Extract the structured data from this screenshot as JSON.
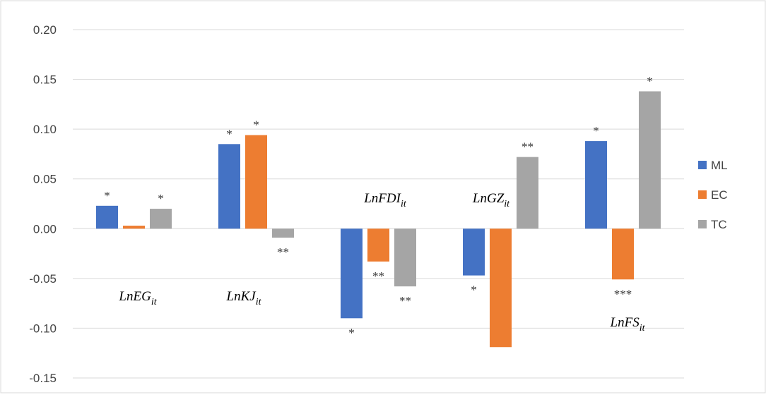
{
  "chart_data": {
    "type": "bar",
    "categories": [
      {
        "base": "LnEG",
        "sub": "it"
      },
      {
        "base": "LnKJ",
        "sub": "it"
      },
      {
        "base": "LnFDI",
        "sub": "it"
      },
      {
        "base": "LnGZ",
        "sub": "it"
      },
      {
        "base": "LnFS",
        "sub": "it"
      }
    ],
    "series": [
      {
        "name": "ML",
        "color": "#4472C4",
        "values": [
          0.023,
          0.085,
          -0.09,
          -0.047,
          0.088
        ],
        "sig": [
          "*",
          "*",
          "*",
          "*",
          "*"
        ]
      },
      {
        "name": "EC",
        "color": "#ED7D31",
        "values": [
          0.003,
          0.094,
          -0.033,
          -0.119,
          -0.051
        ],
        "sig": [
          "",
          "*",
          "**",
          "",
          "***"
        ]
      },
      {
        "name": "TC",
        "color": "#A5A5A5",
        "values": [
          0.02,
          -0.009,
          -0.058,
          0.072,
          0.138
        ],
        "sig": [
          "*",
          "**",
          "**",
          "**",
          "*"
        ]
      }
    ],
    "y_ticks": [
      "0.20",
      "0.15",
      "0.10",
      "0.05",
      "0.00",
      "-0.05",
      "-0.10",
      "-0.15"
    ],
    "ylim": [
      -0.15,
      0.2
    ],
    "grid": true,
    "legend_position": "right"
  }
}
